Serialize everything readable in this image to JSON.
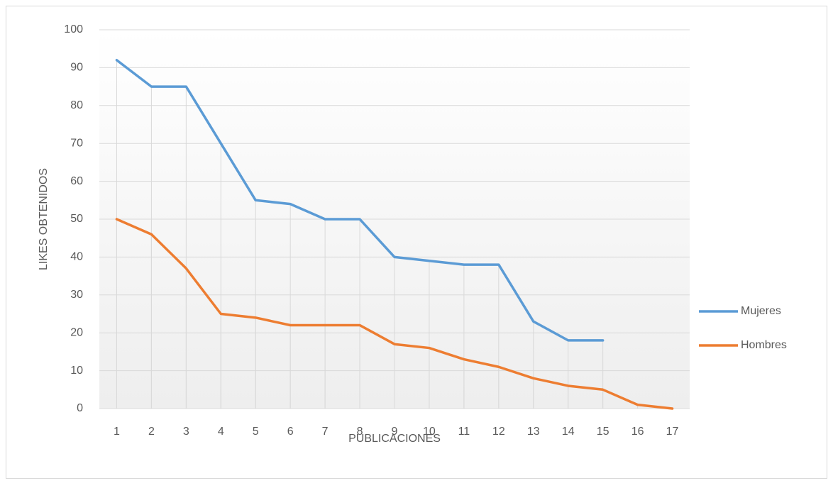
{
  "chart_data": {
    "type": "line",
    "xlabel": "PUBLICACIONES",
    "ylabel": "LIKES OBTENIDOS",
    "categories": [
      "1",
      "2",
      "3",
      "4",
      "5",
      "6",
      "7",
      "8",
      "9",
      "10",
      "11",
      "12",
      "13",
      "14",
      "15",
      "16",
      "17"
    ],
    "series": [
      {
        "name": "Mujeres",
        "color": "#5b9bd5",
        "values": [
          92,
          85,
          85,
          70,
          55,
          54,
          50,
          50,
          40,
          39,
          38,
          38,
          23,
          18,
          18,
          null,
          null
        ]
      },
      {
        "name": "Hombres",
        "color": "#ed7d31",
        "values": [
          50,
          46,
          37,
          25,
          24,
          22,
          22,
          22,
          17,
          16,
          13,
          11,
          8,
          6,
          5,
          1,
          0
        ]
      }
    ],
    "ylim": [
      0,
      100
    ],
    "yticks": [
      0,
      10,
      20,
      30,
      40,
      50,
      60,
      70,
      80,
      90,
      100
    ],
    "grid": true,
    "drop_lines": true,
    "legend": "right"
  }
}
